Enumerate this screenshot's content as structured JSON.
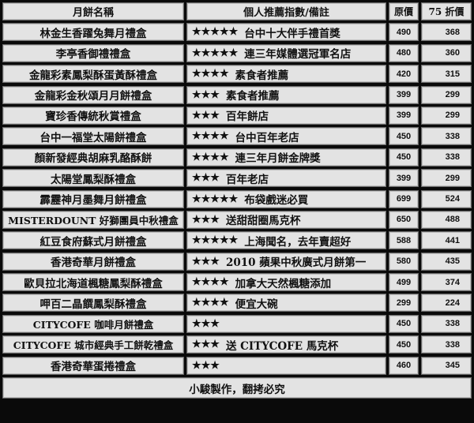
{
  "header": {
    "name": "月餅名稱",
    "note": "個人推薦指數/備註",
    "price": "原價",
    "discount": "75 折價"
  },
  "rows": [
    {
      "name": "林金生香躍兔舞月禮盒",
      "stars": "★★★★★",
      "note": "台中十大伴手禮首獎",
      "price": "490",
      "discount": "368"
    },
    {
      "name": "李亭香御禮禮盒",
      "stars": "★★★★★",
      "note": "連三年媒體選冠軍名店",
      "price": "480",
      "discount": "360"
    },
    {
      "name": "金龍彩素鳳梨酥蛋黃酥禮盒",
      "stars": "★★★★",
      "note": "素食者推薦",
      "price": "420",
      "discount": "315"
    },
    {
      "name": "金龍彩金秋頌月月餅禮盒",
      "stars": "★★★",
      "note": "素食者推薦",
      "price": "399",
      "discount": "299"
    },
    {
      "name": "寶珍香傳統秋賞禮盒",
      "stars": "★★★",
      "note": "百年餅店",
      "price": "399",
      "discount": "299"
    },
    {
      "name": "台中一福堂太陽餅禮盒",
      "stars": "★★★★",
      "note": "台中百年老店",
      "price": "450",
      "discount": "338"
    },
    {
      "name": "顏新發經典胡麻乳酪酥餅",
      "stars": "★★★★",
      "note": "連三年月餅金牌獎",
      "price": "450",
      "discount": "338"
    },
    {
      "name": "太陽堂鳳梨酥禮盒",
      "stars": "★★★",
      "note": "百年老店",
      "price": "399",
      "discount": "299"
    },
    {
      "name": "霹靂神月墨舞月餅禮盒",
      "stars": "★★★★★",
      "note": "布袋戲迷必買",
      "price": "699",
      "discount": "524"
    },
    {
      "name": "MISTERDOUNT 好獅團員中秋禮盒",
      "stars": "★★★",
      "note": "送甜甜圈馬克杯",
      "price": "650",
      "discount": "488"
    },
    {
      "name": "紅豆食府蘇式月餅禮盒",
      "stars": "★★★★★",
      "note": "上海聞名，去年賣超好",
      "price": "588",
      "discount": "441"
    },
    {
      "name": "香港奇華月餅禮盒",
      "stars": "★★★",
      "note": "2010 蘋果中秋廣式月餅第一",
      "price": "580",
      "discount": "435"
    },
    {
      "name": "歐貝拉北海道楓糖鳳梨酥禮盒",
      "stars": "★★★★",
      "note": "加拿大天然楓糖添加",
      "price": "499",
      "discount": "374"
    },
    {
      "name": "呷百二晶饌鳳梨酥禮盒",
      "stars": "★★★★",
      "note": "便宜大碗",
      "price": "299",
      "discount": "224"
    },
    {
      "name": "CITYCOFE 咖啡月餅禮盒",
      "stars": "★★★",
      "note": "",
      "price": "450",
      "discount": "338"
    },
    {
      "name": "CITYCOFE 城市經典手工餅乾禮盒",
      "stars": "★★★",
      "note": "送 CITYCOFE 馬克杯",
      "price": "450",
      "discount": "338"
    },
    {
      "name": "香港奇華蛋捲禮盒",
      "stars": "★★★",
      "note": "",
      "price": "460",
      "discount": "345"
    }
  ],
  "footer": "小駿製作，翻拷必究"
}
